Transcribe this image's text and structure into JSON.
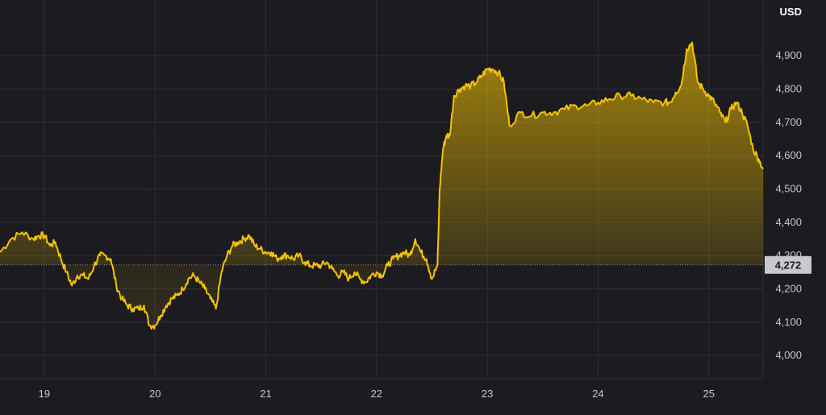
{
  "chart_data": {
    "type": "area",
    "currency_label": "USD",
    "x_tick_labels": [
      "19",
      "20",
      "21",
      "22",
      "23",
      "24",
      "25"
    ],
    "x_range": [
      18.6,
      25.49
    ],
    "ylim": [
      3930,
      4995
    ],
    "y_ticks": [
      4000,
      4100,
      4200,
      4300,
      4400,
      4500,
      4600,
      4700,
      4800,
      4900
    ],
    "y_tick_labels": [
      "4,000",
      "4,100",
      "4,200",
      "4,300",
      "4,400",
      "4,500",
      "4,600",
      "4,700",
      "4,800",
      "4,900"
    ],
    "baseline_value": 4272,
    "baseline_label": "4,272",
    "grid": true,
    "colors": {
      "line": "#f5c400",
      "background": "#1b1b20",
      "grid": "#2f2f36",
      "badge": "#c9c9cd"
    },
    "series": [
      {
        "x": [
          18.6,
          18.7,
          18.8,
          18.9,
          18.95,
          19.0,
          19.05,
          19.1,
          19.15,
          19.2,
          19.25,
          19.3,
          19.35,
          19.4,
          19.45,
          19.5,
          19.55,
          19.6,
          19.65,
          19.7,
          19.75,
          19.8,
          19.85,
          19.9,
          19.95,
          20.0,
          20.05,
          20.1,
          20.15,
          20.2,
          20.25,
          20.3,
          20.35,
          20.4,
          20.45,
          20.5,
          20.55,
          20.6,
          20.65,
          20.7,
          20.75,
          20.8,
          20.85,
          20.9,
          20.95,
          21.0,
          21.05,
          21.1,
          21.15,
          21.2,
          21.25,
          21.3,
          21.35,
          21.4,
          21.45,
          21.5,
          21.55,
          21.6,
          21.65,
          21.7,
          21.75,
          21.8,
          21.85,
          21.9,
          21.95,
          22.0,
          22.05,
          22.1,
          22.15,
          22.2,
          22.25,
          22.3,
          22.35,
          22.4,
          22.45,
          22.5,
          22.55,
          22.57,
          22.6,
          22.63,
          22.66,
          22.7,
          22.75,
          22.8,
          22.85,
          22.9,
          22.95,
          23.0,
          23.05,
          23.1,
          23.15,
          23.2,
          23.3,
          23.4,
          23.5,
          23.6,
          23.7,
          23.8,
          23.9,
          24.0,
          24.1,
          24.2,
          24.3,
          24.4,
          24.5,
          24.6,
          24.65,
          24.7,
          24.75,
          24.8,
          24.85,
          24.9,
          24.95,
          25.0,
          25.05,
          25.1,
          25.15,
          25.2,
          25.25,
          25.3,
          25.35,
          25.4,
          25.45,
          25.49
        ],
        "y": [
          4310,
          4350,
          4370,
          4350,
          4360,
          4360,
          4330,
          4340,
          4290,
          4250,
          4210,
          4240,
          4240,
          4230,
          4270,
          4300,
          4300,
          4290,
          4210,
          4170,
          4150,
          4140,
          4140,
          4150,
          4090,
          4090,
          4120,
          4150,
          4170,
          4180,
          4200,
          4230,
          4240,
          4220,
          4200,
          4170,
          4140,
          4250,
          4300,
          4330,
          4340,
          4350,
          4360,
          4330,
          4320,
          4310,
          4310,
          4290,
          4300,
          4300,
          4290,
          4300,
          4280,
          4270,
          4270,
          4270,
          4280,
          4260,
          4240,
          4250,
          4230,
          4250,
          4230,
          4220,
          4240,
          4250,
          4240,
          4270,
          4290,
          4300,
          4310,
          4300,
          4350,
          4310,
          4290,
          4230,
          4270,
          4500,
          4620,
          4660,
          4660,
          4780,
          4800,
          4810,
          4810,
          4820,
          4840,
          4860,
          4860,
          4850,
          4820,
          4690,
          4730,
          4720,
          4730,
          4730,
          4740,
          4750,
          4750,
          4760,
          4770,
          4780,
          4780,
          4770,
          4760,
          4760,
          4760,
          4790,
          4810,
          4920,
          4940,
          4820,
          4800,
          4780,
          4760,
          4730,
          4700,
          4740,
          4760,
          4730,
          4690,
          4620,
          4590,
          4560
        ]
      }
    ]
  }
}
